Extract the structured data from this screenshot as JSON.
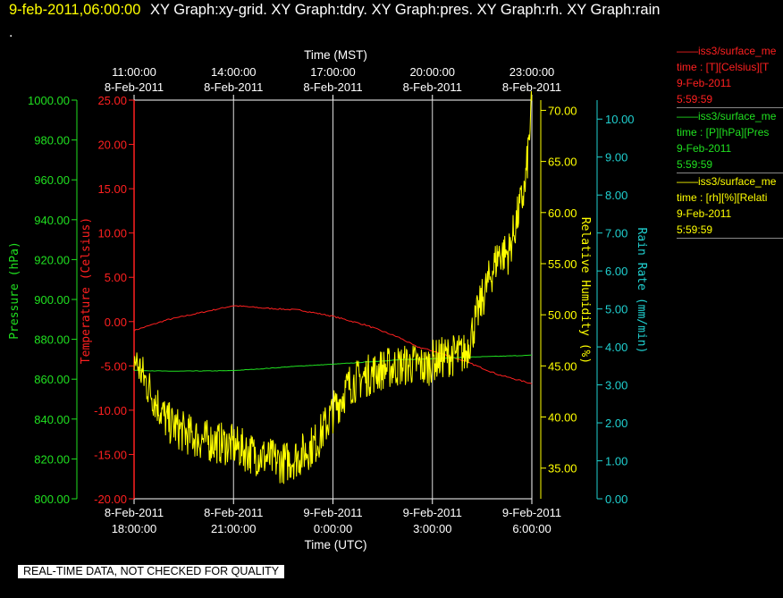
{
  "header": {
    "timestamp": "9-feb-2011,06:00:00",
    "graphs": "XY Graph:xy-grid.  XY Graph:tdry.  XY Graph:pres.  XY Graph:rh.  XY Graph:rain",
    "dot": "."
  },
  "legend": [
    {
      "color": "#ff2020",
      "source": "iss3/surface_me",
      "fields": "time : [T][Celsius][T",
      "date": "9-Feb-2011",
      "time": "5:59:59"
    },
    {
      "color": "#20e020",
      "source": "iss3/surface_me",
      "fields": "time : [P][hPa][Pres",
      "date": "9-Feb-2011",
      "time": "5:59:59"
    },
    {
      "color": "#ffff00",
      "source": "iss3/surface_me",
      "fields": "time : [rh][%][Relati",
      "date": "9-Feb-2011",
      "time": "5:59:59"
    }
  ],
  "banner": "REAL-TIME DATA, NOT CHECKED FOR QUALITY",
  "chart_data": {
    "type": "line",
    "top_axis": {
      "title": "Time (MST)",
      "ticks": [
        {
          "hours": 0,
          "l1": "11:00:00",
          "l2": "8-Feb-2011"
        },
        {
          "hours": 3,
          "l1": "14:00:00",
          "l2": "8-Feb-2011"
        },
        {
          "hours": 6,
          "l1": "17:00:00",
          "l2": "8-Feb-2011"
        },
        {
          "hours": 9,
          "l1": "20:00:00",
          "l2": "8-Feb-2011"
        },
        {
          "hours": 12,
          "l1": "23:00:00",
          "l2": "8-Feb-2011"
        }
      ]
    },
    "bottom_axis": {
      "title": "Time (UTC)",
      "ticks": [
        {
          "hours": 0,
          "l1": "8-Feb-2011",
          "l2": "18:00:00"
        },
        {
          "hours": 3,
          "l1": "8-Feb-2011",
          "l2": "21:00:00"
        },
        {
          "hours": 6,
          "l1": "9-Feb-2011",
          "l2": "0:00:00"
        },
        {
          "hours": 9,
          "l1": "9-Feb-2011",
          "l2": "3:00:00"
        },
        {
          "hours": 12,
          "l1": "9-Feb-2011",
          "l2": "6:00:00"
        }
      ]
    },
    "xlim_hours": [
      0,
      12
    ],
    "axes": [
      {
        "id": "pres",
        "label": "Pressure (hPa)",
        "color": "#20e020",
        "min": 800,
        "max": 1000,
        "ticks": [
          "1000.00",
          "980.00",
          "960.00",
          "940.00",
          "920.00",
          "900.00",
          "880.00",
          "860.00",
          "840.00",
          "820.00",
          "800.00"
        ]
      },
      {
        "id": "temp",
        "label": "Temperature (Celsius)",
        "color": "#ff2020",
        "min": -20,
        "max": 25,
        "ticks": [
          "25.00",
          "20.00",
          "15.00",
          "10.00",
          "5.00",
          "0.00",
          "-5.00",
          "-10.00",
          "-15.00",
          "-20.00"
        ]
      },
      {
        "id": "rh",
        "label": "Relative Humidity (%)",
        "color": "#ffff00",
        "min": 32,
        "max": 71,
        "ticks": [
          "70.00",
          "65.00",
          "60.00",
          "55.00",
          "50.00",
          "45.00",
          "40.00",
          "35.00"
        ]
      },
      {
        "id": "rain",
        "label": "Rain Rate (mm/min)",
        "color": "#20d0d0",
        "min": 0,
        "max": 10.5,
        "ticks": [
          "10.00",
          "9.00",
          "8.00",
          "7.00",
          "6.00",
          "5.00",
          "4.00",
          "3.00",
          "2.00",
          "1.00",
          "0.00"
        ]
      }
    ],
    "series": [
      {
        "axis": "temp",
        "color": "#ff2020",
        "x": [
          0,
          1,
          2,
          3,
          4,
          5,
          6,
          7,
          8,
          8.5,
          9,
          10,
          11,
          12
        ],
        "y": [
          -1.0,
          0.2,
          1.0,
          1.8,
          1.5,
          1.3,
          0.6,
          -0.4,
          -1.8,
          -2.8,
          -3.3,
          -4.5,
          -6.0,
          -7.0
        ]
      },
      {
        "axis": "pres",
        "color": "#20e020",
        "x": [
          0,
          1,
          2,
          3,
          4,
          5,
          6,
          7,
          8,
          9,
          10,
          11,
          12
        ],
        "y": [
          864.5,
          864.0,
          864.1,
          864.3,
          865.4,
          866.6,
          867.5,
          868.6,
          869.7,
          870.3,
          871.0,
          871.5,
          872.0
        ]
      },
      {
        "axis": "rh",
        "color": "#ffff00",
        "x": [
          0,
          0.5,
          1,
          1.5,
          2,
          2.5,
          3,
          3.5,
          4,
          4.5,
          5,
          5.5,
          6,
          6.5,
          7,
          7.5,
          8,
          8.5,
          8.8,
          9,
          9.5,
          10,
          10.5,
          11,
          11.3,
          11.6,
          11.8,
          12
        ],
        "y": [
          45.8,
          42.5,
          39.5,
          38.5,
          37.8,
          37.5,
          37.2,
          36.5,
          36.0,
          35.5,
          36.2,
          37.5,
          40.5,
          43.2,
          44.0,
          44.7,
          45.0,
          45.2,
          44.8,
          45.5,
          46.0,
          46.2,
          51.5,
          56.0,
          56.0,
          60.0,
          62.5,
          70.5
        ]
      }
    ]
  }
}
